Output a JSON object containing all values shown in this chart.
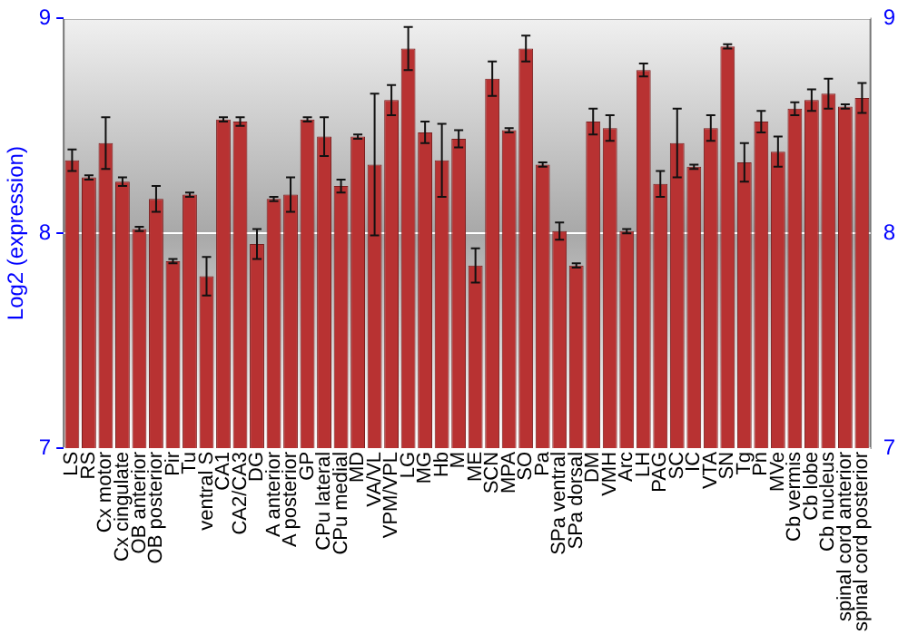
{
  "chart_data": {
    "type": "bar",
    "ylabel": "Log2 (expression)",
    "categories": [
      "LS",
      "RS",
      "Cx motor",
      "Cx cingulate",
      "OB anterior",
      "OB posterior",
      "Pir",
      "Tu",
      "ventral S",
      "CA1",
      "CA2/CA3",
      "DG",
      "A anterior",
      "A posterior",
      "GP",
      "CPu lateral",
      "CPu medial",
      "MD",
      "VA/VL",
      "VPM/VPL",
      "LG",
      "MG",
      "Hb",
      "M",
      "ME",
      "SCN",
      "MPA",
      "SO",
      "Pa",
      "SPa ventral",
      "SPa dorsal",
      "DM",
      "VMH",
      "Arc",
      "LH",
      "PAG",
      "SC",
      "IC",
      "VTA",
      "SN",
      "Tg",
      "Pn",
      "MVe",
      "Cb vermis",
      "Cb lobe",
      "Cb nucleus",
      "spinal cord anterior",
      "spinal cord posterior"
    ],
    "values": [
      8.34,
      8.26,
      8.42,
      8.24,
      8.02,
      8.16,
      7.87,
      8.18,
      7.8,
      8.53,
      8.52,
      7.95,
      8.16,
      8.18,
      8.53,
      8.45,
      8.22,
      8.45,
      8.32,
      8.62,
      8.86,
      8.47,
      8.34,
      8.44,
      7.85,
      8.72,
      8.48,
      8.86,
      8.32,
      8.01,
      7.85,
      8.52,
      8.49,
      8.01,
      8.76,
      8.23,
      8.42,
      8.31,
      8.49,
      8.87,
      8.33,
      8.52,
      8.38,
      8.58,
      8.62,
      8.65,
      8.59,
      8.63
    ],
    "errors": [
      0.05,
      0.01,
      0.12,
      0.02,
      0.01,
      0.06,
      0.01,
      0.01,
      0.09,
      0.01,
      0.02,
      0.07,
      0.01,
      0.08,
      0.01,
      0.09,
      0.03,
      0.01,
      0.33,
      0.07,
      0.1,
      0.05,
      0.17,
      0.04,
      0.08,
      0.08,
      0.01,
      0.06,
      0.01,
      0.04,
      0.01,
      0.06,
      0.06,
      0.01,
      0.03,
      0.06,
      0.16,
      0.01,
      0.06,
      0.01,
      0.09,
      0.05,
      0.07,
      0.03,
      0.05,
      0.07,
      0.01,
      0.07
    ],
    "color": "#b83232",
    "ylim": [
      7,
      9
    ],
    "yticks": [
      7,
      8,
      9
    ],
    "y2lim": [
      7,
      9
    ],
    "y2ticks": [
      7,
      8,
      9
    ],
    "grid": "y",
    "legend": false
  }
}
